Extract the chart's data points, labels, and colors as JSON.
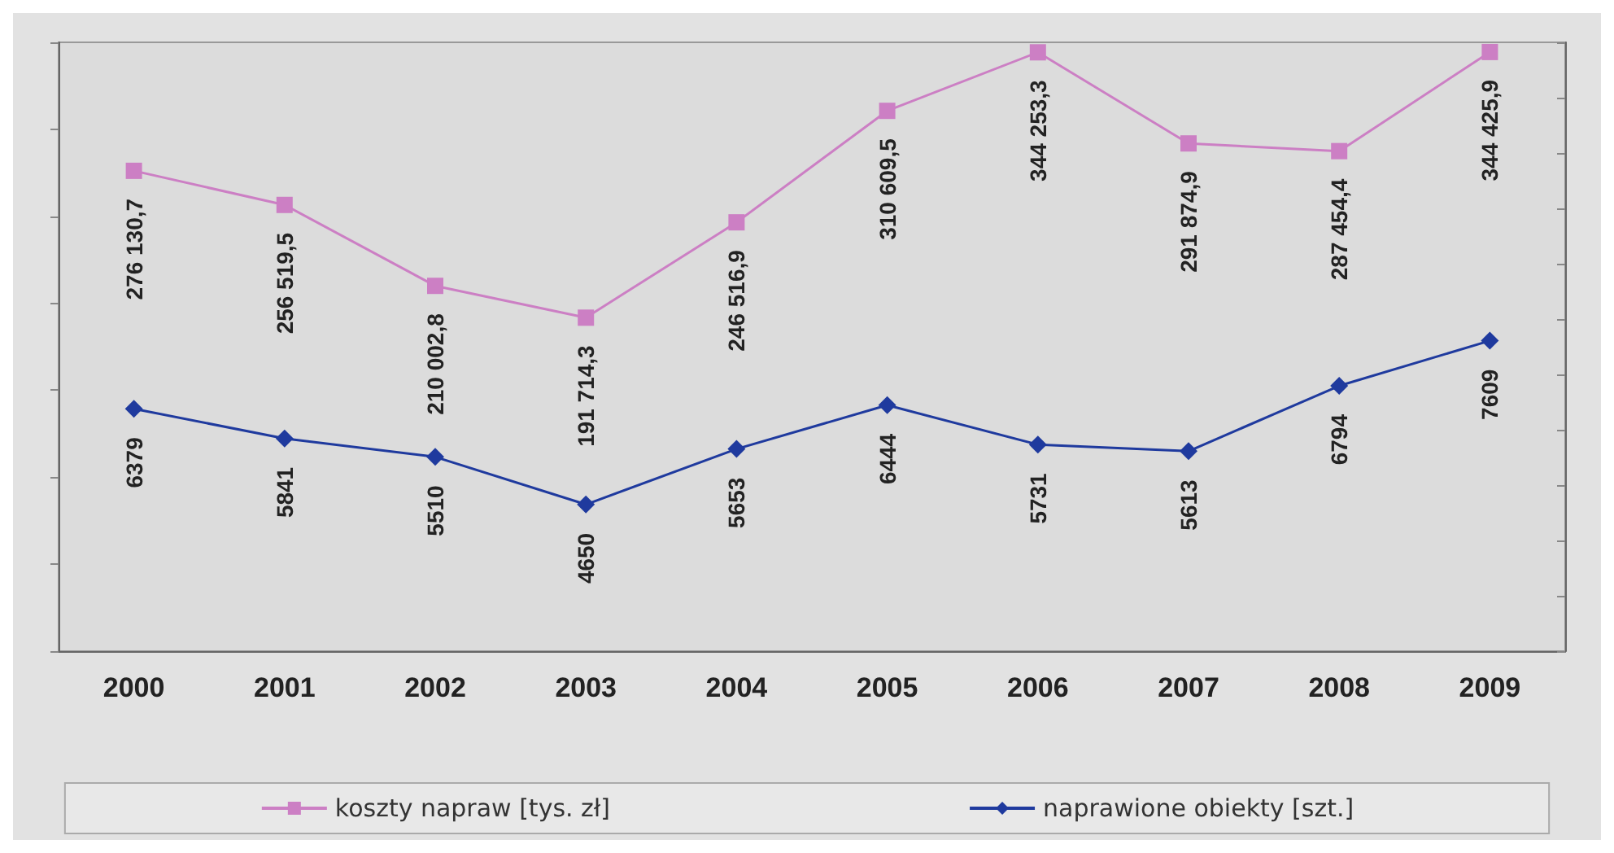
{
  "chart_data": {
    "type": "line",
    "categories": [
      "2000",
      "2001",
      "2002",
      "2003",
      "2004",
      "2005",
      "2006",
      "2007",
      "2008",
      "2009"
    ],
    "series": [
      {
        "name": "koszty napraw [tys. zł]",
        "color": "#cc7fc4",
        "marker": "square",
        "values": [
          276130.7,
          256519.5,
          210002.8,
          191714.3,
          246516.9,
          310609.5,
          344253.3,
          291874.9,
          287454.4,
          344425.9
        ],
        "value_labels": [
          "276 130,7",
          "256 519,5",
          "210 002,8",
          "191 714,3",
          "246 516,9",
          "310 609,5",
          "344 253,3",
          "291 874,9",
          "287 454,4",
          "344 425,9"
        ]
      },
      {
        "name": "naprawione obiekty [szt.]",
        "color": "#1f3a9e",
        "marker": "diamond",
        "axis": "y2",
        "values": [
          6379,
          5841,
          5510,
          4650,
          5653,
          6444,
          5731,
          5613,
          6794,
          7609
        ],
        "value_labels": [
          "6379",
          "5841",
          "5510",
          "4650",
          "5653",
          "6444",
          "5731",
          "5613",
          "6794",
          "7609"
        ]
      }
    ],
    "ylim": [
      0,
      350000
    ],
    "yticks": [
      {
        "value": 0,
        "label": null
      },
      {
        "value": 50000,
        "label": null
      },
      {
        "value": 100000,
        "label": null
      },
      {
        "value": 150000,
        "label": null
      },
      {
        "value": 200000,
        "label": null
      },
      {
        "value": 250000,
        "label": null
      },
      {
        "value": 300000,
        "label": null
      },
      {
        "value": 350000,
        "label": null
      }
    ],
    "y2lim": [
      2000,
      13000
    ],
    "y2ticks": [
      {
        "value": 2000,
        "label": null
      },
      {
        "value": 3000,
        "label": null
      },
      {
        "value": 4000,
        "label": null
      },
      {
        "value": 5000,
        "label": null
      },
      {
        "value": 6000,
        "label": null
      },
      {
        "value": 7000,
        "label": null
      },
      {
        "value": 8000,
        "label": null
      },
      {
        "value": 9000,
        "label": null
      },
      {
        "value": 10000,
        "label": null
      },
      {
        "value": 11000,
        "label": null
      },
      {
        "value": 12000,
        "label": null
      },
      {
        "value": 13000,
        "label": null
      }
    ],
    "tick_labels": "x",
    "grid": false,
    "legend": "bottom",
    "line_style": "solid"
  }
}
